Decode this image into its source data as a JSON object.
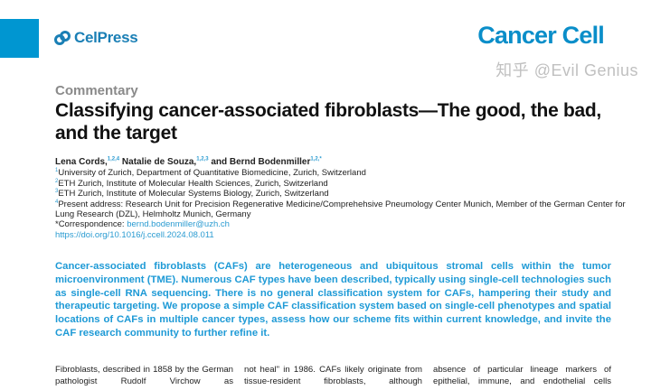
{
  "header": {
    "publisher": "CelPress",
    "journal": "Cancer Cell",
    "brand_color": "#0096d1"
  },
  "article": {
    "type": "Commentary",
    "title": "Classifying cancer-associated fibroblasts—The good, the bad, and the target",
    "authors": [
      {
        "name": "Lena Cords,",
        "sup": "1,2,4"
      },
      {
        "name": " Natalie de Souza,",
        "sup": "1,2,3"
      },
      {
        "name": " and Bernd Bodenmiller",
        "sup": "1,2,*"
      }
    ],
    "affiliations": [
      {
        "sup": "1",
        "text": "University of Zurich, Department of Quantitative Biomedicine, Zurich, Switzerland"
      },
      {
        "sup": "2",
        "text": "ETH Zurich, Institute of Molecular Health Sciences, Zurich, Switzerland"
      },
      {
        "sup": "3",
        "text": "ETH Zurich, Institute of Molecular Systems Biology, Zurich, Switzerland"
      },
      {
        "sup": "4",
        "text": "Present address: Research Unit for Precision Regenerative Medicine/Comprehehsive Pneumology Center Munich, Member of the German Center for Lung Research (DZL), Helmholtz Munich, Germany"
      }
    ],
    "correspondence_label": "*Correspondence: ",
    "correspondence_email": "bernd.bodenmiller@uzh.ch",
    "doi": "https://doi.org/10.1016/j.ccell.2024.08.011",
    "abstract": "Cancer-associated fibroblasts (CAFs) are heterogeneous and ubiquitous stromal cells within the tumor microenvironment (TME). Numerous CAF types have been described, typically using single-cell technologies such as single-cell RNA sequencing. There is no general classification system for CAFs, hampering their study and therapeutic targeting. We propose a simple CAF classification system based on single-cell phenotypes and spatial locations of CAFs in multiple cancer types, assess how our scheme fits within current knowledge, and invite the CAF research community to further refine it.",
    "columns": [
      "Fibroblasts, described in 1858 by the German pathologist Rudolf Virchow as",
      "not heal\" in 1986. CAFs likely originate from tissue-resident fibroblasts, although",
      "absence of particular lineage markers of epithelial, immune, and endothelial cells"
    ]
  },
  "watermark": "知乎 @Evil Genius"
}
